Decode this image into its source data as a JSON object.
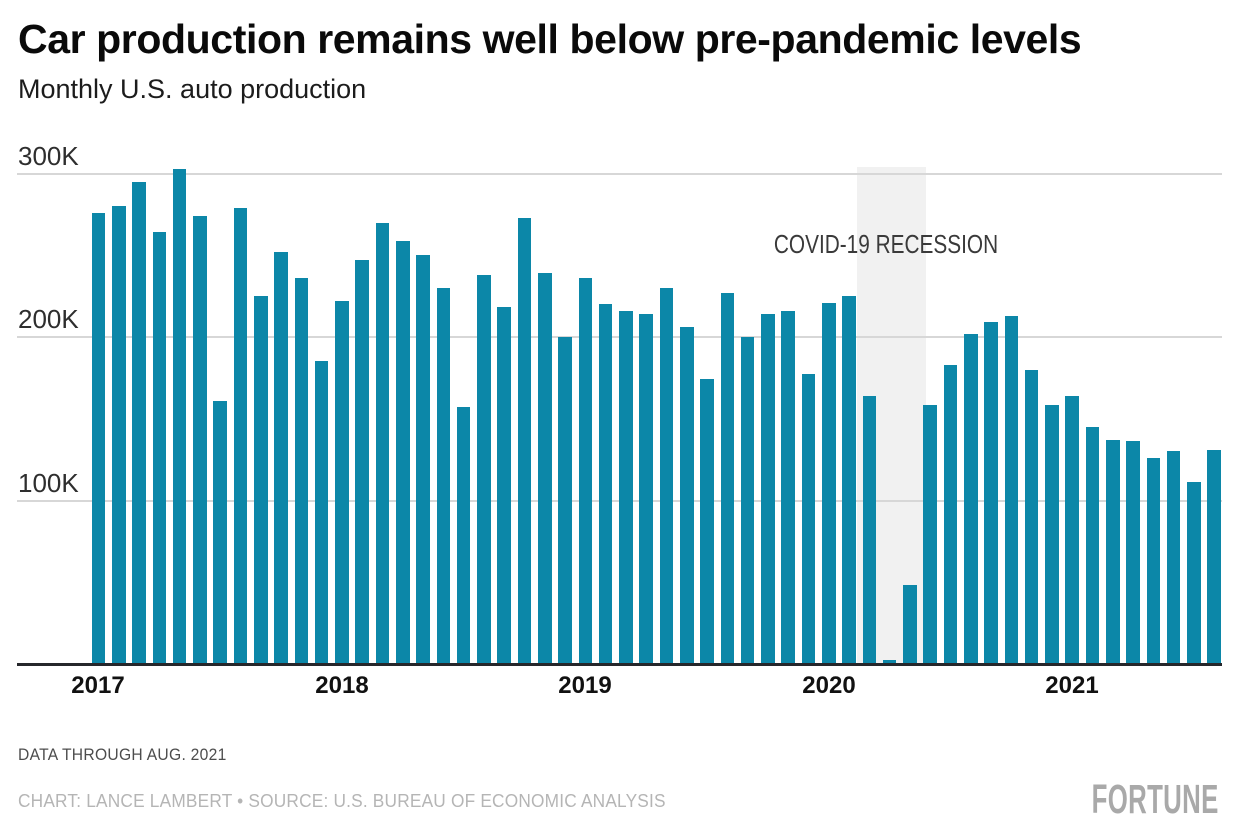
{
  "chart_data": {
    "type": "bar",
    "title": "Car production remains well below pre-pandemic levels",
    "subtitle": "Monthly U.S. auto production",
    "values_unit": "thousands of vehicles per month",
    "categories": [
      "Jan 2017",
      "Feb 2017",
      "Mar 2017",
      "Apr 2017",
      "May 2017",
      "Jun 2017",
      "Jul 2017",
      "Aug 2017",
      "Sep 2017",
      "Oct 2017",
      "Nov 2017",
      "Dec 2017",
      "Jan 2018",
      "Feb 2018",
      "Mar 2018",
      "Apr 2018",
      "May 2018",
      "Jun 2018",
      "Jul 2018",
      "Aug 2018",
      "Sep 2018",
      "Oct 2018",
      "Nov 2018",
      "Dec 2018",
      "Jan 2019",
      "Feb 2019",
      "Mar 2019",
      "Apr 2019",
      "May 2019",
      "Jun 2019",
      "Jul 2019",
      "Aug 2019",
      "Sep 2019",
      "Oct 2019",
      "Nov 2019",
      "Dec 2019",
      "Jan 2020",
      "Feb 2020",
      "Mar 2020",
      "Apr 2020",
      "May 2020",
      "Jun 2020",
      "Jul 2020",
      "Aug 2020",
      "Sep 2020",
      "Oct 2020",
      "Nov 2020",
      "Dec 2020",
      "Jan 2021",
      "Feb 2021",
      "Mar 2021",
      "Apr 2021",
      "May 2021",
      "Jun 2021",
      "Jul 2021",
      "Aug 2021"
    ],
    "values_thousands": [
      276,
      280,
      295,
      264,
      303,
      274,
      161,
      279,
      225,
      252,
      236,
      185,
      222,
      247,
      270,
      259,
      250,
      230,
      157,
      238,
      218,
      273,
      239,
      200,
      236,
      220,
      216,
      214,
      230,
      206,
      174,
      227,
      200,
      214,
      216,
      177,
      221,
      225,
      164,
      2,
      48,
      158,
      183,
      202,
      209,
      213,
      180,
      158,
      164,
      145,
      137,
      136,
      126,
      130,
      111,
      131
    ],
    "ylim_thousands": [
      0,
      300
    ],
    "grid": "horizontal",
    "legend": "none",
    "recession_band": {
      "label": "COVID-19 RECESSION",
      "from": "Mar 2020",
      "to": "May 2020"
    }
  },
  "axis": {
    "y_ticks": [
      "300K",
      "200K",
      "100K"
    ],
    "x_ticks": [
      "2017",
      "2018",
      "2019",
      "2020",
      "2021"
    ]
  },
  "annotations": {
    "recession_label": "COVID-19 RECESSION"
  },
  "footer": {
    "note": "DATA THROUGH AUG. 2021",
    "credit": "CHART: LANCE LAMBERT • SOURCE: U.S. BUREAU OF ECONOMIC ANALYSIS",
    "logo": "FORTUNE"
  },
  "colors": {
    "bar": "#0c87a8",
    "grid": "#d7d7d7",
    "axis_line": "#26272b",
    "band": "#f1f1f1",
    "title": "#0a0a0a",
    "subtitle": "#1c1c1c",
    "tick_label": "#2e2e2e",
    "year_label": "#111111",
    "recession_label": "#3a3a3a",
    "note": "#4d4d4d",
    "credit": "#b5b5b5",
    "logo": "#a9a9a9",
    "background": "#ffffff"
  }
}
